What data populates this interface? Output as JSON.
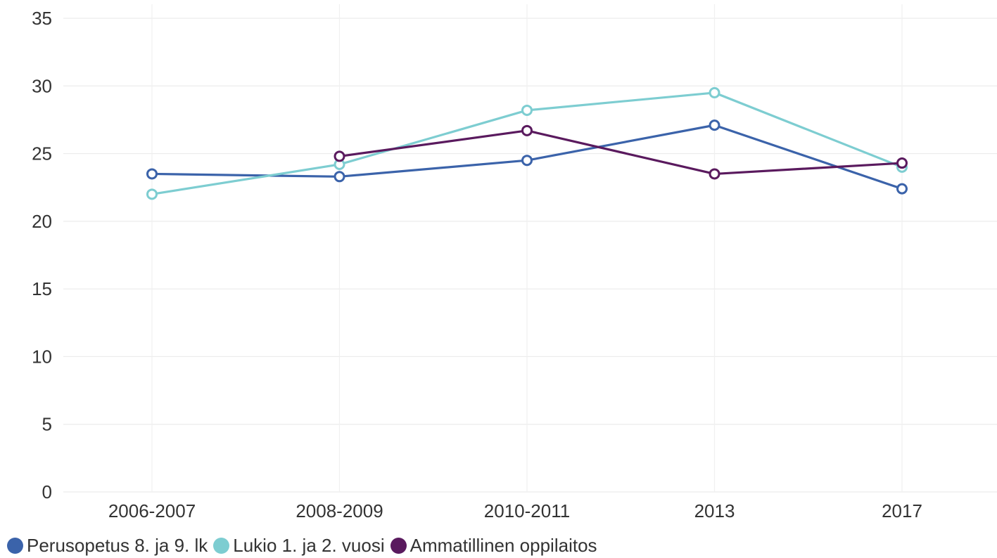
{
  "chart_data": {
    "type": "line",
    "title": "",
    "xlabel": "",
    "ylabel": "",
    "categories": [
      "2006-2007",
      "2008-2009",
      "2010-2011",
      "2013",
      "2017"
    ],
    "ylim": [
      0,
      35
    ],
    "yticks": [
      "0",
      "5",
      "10",
      "15",
      "20",
      "25",
      "30",
      "35"
    ],
    "grid": true,
    "legend_position": "bottom-left",
    "series": [
      {
        "name": "Perusopetus 8. ja 9. lk",
        "color": "#3b63aa",
        "values": [
          23.5,
          23.3,
          24.5,
          27.1,
          22.4
        ]
      },
      {
        "name": "Lukio 1. ja 2. vuosi",
        "color": "#7dcdd1",
        "values": [
          22.0,
          24.2,
          28.2,
          29.5,
          24.0
        ]
      },
      {
        "name": "Ammatillinen oppilaitos",
        "color": "#5a1a5e",
        "values": [
          null,
          24.8,
          26.7,
          23.5,
          24.3
        ]
      }
    ]
  }
}
